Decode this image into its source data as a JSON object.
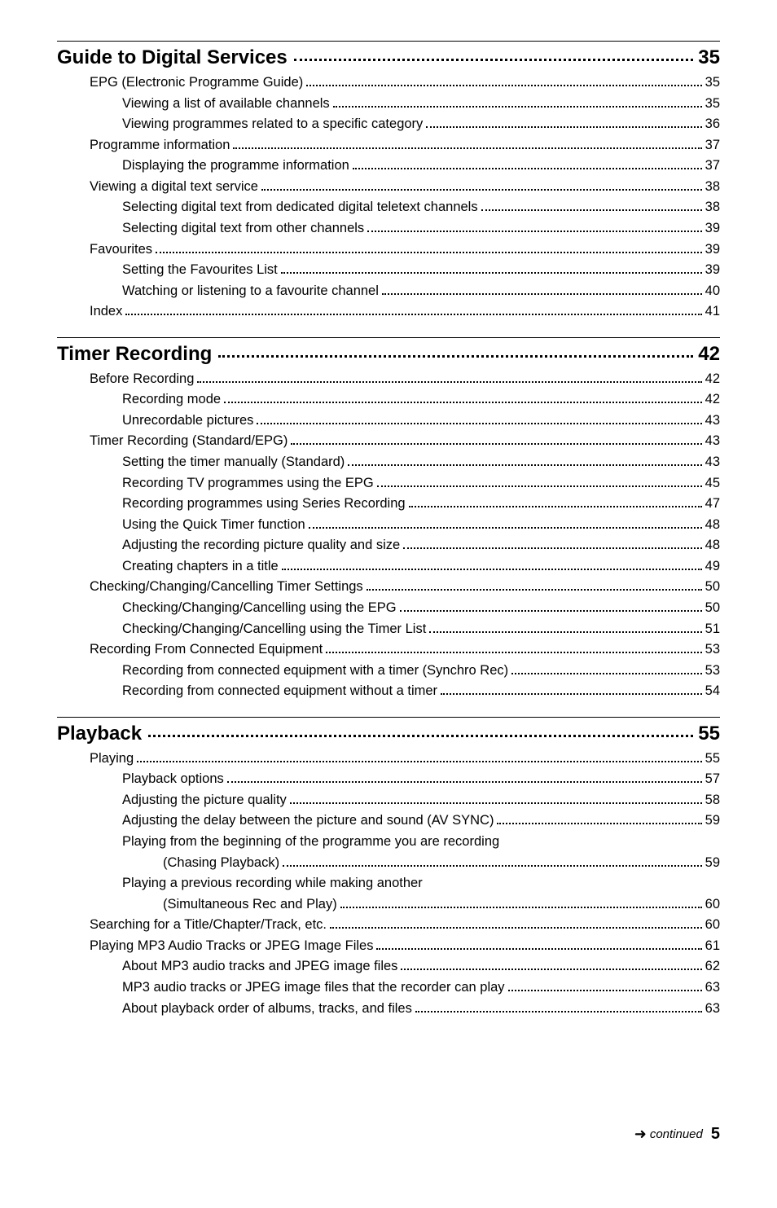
{
  "sections": [
    {
      "title": "Guide to Digital Services",
      "page": "35",
      "entries": [
        {
          "level": 1,
          "label": "EPG (Electronic Programme Guide)",
          "page": "35"
        },
        {
          "level": 2,
          "label": "Viewing a list of available channels",
          "page": "35"
        },
        {
          "level": 2,
          "label": "Viewing programmes related to a specific category",
          "page": "36"
        },
        {
          "level": 1,
          "label": "Programme information",
          "page": "37"
        },
        {
          "level": 2,
          "label": "Displaying the programme information",
          "page": "37"
        },
        {
          "level": 1,
          "label": "Viewing a digital text service",
          "page": "38"
        },
        {
          "level": 2,
          "label": "Selecting digital text from dedicated digital teletext channels",
          "page": "38"
        },
        {
          "level": 2,
          "label": "Selecting digital text from other channels",
          "page": "39"
        },
        {
          "level": 1,
          "label": "Favourites",
          "page": "39"
        },
        {
          "level": 2,
          "label": "Setting the Favourites List",
          "page": "39"
        },
        {
          "level": 2,
          "label": "Watching or listening to a favourite channel",
          "page": "40"
        },
        {
          "level": 1,
          "label": "Index",
          "page": "41"
        }
      ]
    },
    {
      "title": "Timer Recording",
      "page": "42",
      "entries": [
        {
          "level": 1,
          "label": "Before Recording",
          "page": "42"
        },
        {
          "level": 2,
          "label": "Recording mode",
          "page": "42"
        },
        {
          "level": 2,
          "label": "Unrecordable pictures",
          "page": "43"
        },
        {
          "level": 1,
          "label": "Timer Recording (Standard/EPG)",
          "page": "43"
        },
        {
          "level": 2,
          "label": "Setting the timer manually (Standard)",
          "page": "43"
        },
        {
          "level": 2,
          "label": "Recording TV programmes using the EPG",
          "page": "45"
        },
        {
          "level": 2,
          "label": "Recording programmes using Series Recording",
          "page": "47"
        },
        {
          "level": 2,
          "label": "Using the Quick Timer function",
          "page": "48"
        },
        {
          "level": 2,
          "label": "Adjusting the recording picture quality and size",
          "page": "48"
        },
        {
          "level": 2,
          "label": "Creating chapters in a title",
          "page": "49"
        },
        {
          "level": 1,
          "label": "Checking/Changing/Cancelling Timer Settings",
          "page": "50"
        },
        {
          "level": 2,
          "label": "Checking/Changing/Cancelling using the EPG",
          "page": "50"
        },
        {
          "level": 2,
          "label": "Checking/Changing/Cancelling using the Timer List",
          "page": "51"
        },
        {
          "level": 1,
          "label": "Recording From Connected Equipment",
          "page": "53"
        },
        {
          "level": 2,
          "label": "Recording from connected equipment with a timer (Synchro Rec)",
          "page": "53"
        },
        {
          "level": 2,
          "label": "Recording from connected equipment without a timer",
          "page": "54"
        }
      ]
    },
    {
      "title": "Playback",
      "page": "55",
      "entries": [
        {
          "level": 1,
          "label": "Playing",
          "page": "55"
        },
        {
          "level": 2,
          "label": "Playback options",
          "page": "57"
        },
        {
          "level": 2,
          "label": "Adjusting the picture quality",
          "page": "58"
        },
        {
          "level": 2,
          "label": "Adjusting the delay between the picture and sound (AV SYNC)",
          "page": "59"
        },
        {
          "level": 2,
          "label": "Playing from the beginning of the programme you are recording",
          "wrap": true
        },
        {
          "level": 3,
          "label": "(Chasing Playback)",
          "page": "59"
        },
        {
          "level": 2,
          "label": "Playing a previous recording while making another",
          "wrap": true
        },
        {
          "level": 3,
          "label": "(Simultaneous Rec and Play)",
          "page": "60"
        },
        {
          "level": 1,
          "label": "Searching for a Title/Chapter/Track, etc.",
          "page": "60"
        },
        {
          "level": 1,
          "label": "Playing MP3 Audio Tracks or JPEG Image Files",
          "page": "61"
        },
        {
          "level": 2,
          "label": "About MP3 audio tracks and JPEG image files",
          "page": "62"
        },
        {
          "level": 2,
          "label": "MP3 audio tracks or JPEG image files that the recorder can play",
          "page": "63"
        },
        {
          "level": 2,
          "label": "About playback order of albums, tracks, and files",
          "page": "63"
        }
      ]
    }
  ],
  "footer": {
    "continued": "continued",
    "pageNumber": "5"
  }
}
